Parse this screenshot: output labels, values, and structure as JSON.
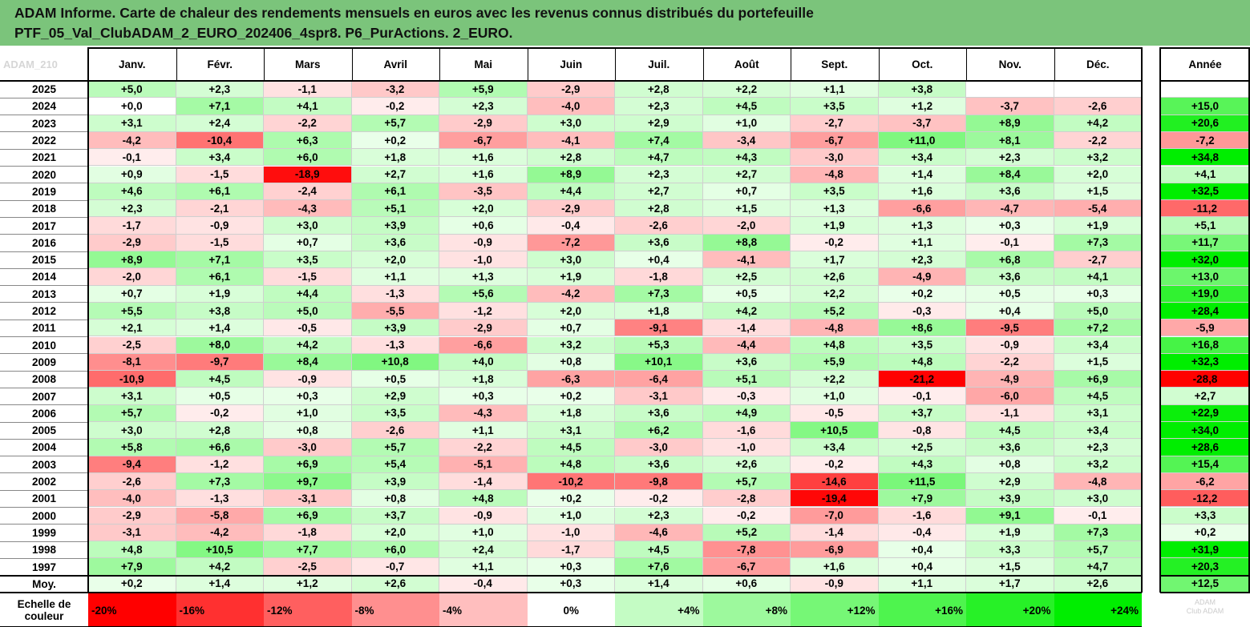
{
  "title": {
    "line1": "ADAM Informe. Carte de chaleur des rendements mensuels en euros avec les revenus connus distribués du portefeuille",
    "line2": "PTF_05_Val_ClubADAM_2_EURO_202406_4spr8. P6_PurActions. 2_EURO."
  },
  "corner_label": "ADAM_210",
  "watermark": "ADAM\nClub ADAM",
  "chart_data": {
    "type": "heatmap",
    "columns": [
      "Janv.",
      "Févr.",
      "Mars",
      "Avril",
      "Mai",
      "Juin",
      "Juil.",
      "Août",
      "Sept.",
      "Oct.",
      "Nov.",
      "Déc."
    ],
    "year_column": "Année",
    "rows": [
      {
        "label": "2025",
        "values": [
          5.0,
          2.3,
          -1.1,
          -3.2,
          5.9,
          -2.9,
          2.8,
          2.2,
          1.1,
          3.8,
          null,
          null
        ],
        "year": null
      },
      {
        "label": "2024",
        "values": [
          0.0,
          7.1,
          4.1,
          -0.2,
          2.3,
          -4.0,
          2.3,
          4.5,
          3.5,
          1.2,
          -3.7,
          -2.6
        ],
        "year": 15.0
      },
      {
        "label": "2023",
        "values": [
          3.1,
          2.4,
          -2.2,
          5.7,
          -2.9,
          3.0,
          2.9,
          1.0,
          -2.7,
          -3.7,
          8.9,
          4.2
        ],
        "year": 20.6
      },
      {
        "label": "2022",
        "values": [
          -4.2,
          -10.4,
          6.3,
          0.2,
          -6.7,
          -4.1,
          7.4,
          -3.4,
          -6.7,
          11.0,
          8.1,
          -2.2
        ],
        "year": -7.2
      },
      {
        "label": "2021",
        "values": [
          -0.1,
          3.4,
          6.0,
          1.8,
          1.6,
          2.8,
          4.7,
          4.3,
          -3.0,
          3.4,
          2.3,
          3.2
        ],
        "year": 34.8
      },
      {
        "label": "2020",
        "values": [
          0.9,
          -1.5,
          -18.9,
          2.7,
          1.6,
          8.9,
          2.3,
          2.7,
          -4.8,
          1.4,
          8.4,
          2.0
        ],
        "year": 4.1
      },
      {
        "label": "2019",
        "values": [
          4.6,
          6.1,
          -2.4,
          6.1,
          -3.5,
          4.4,
          2.7,
          0.7,
          3.5,
          1.6,
          3.6,
          1.5
        ],
        "year": 32.5
      },
      {
        "label": "2018",
        "values": [
          2.3,
          -2.1,
          -4.3,
          5.1,
          2.0,
          -2.9,
          2.8,
          1.5,
          1.3,
          -6.6,
          -4.7,
          -5.4
        ],
        "year": -11.2
      },
      {
        "label": "2017",
        "values": [
          -1.7,
          -0.9,
          3.0,
          3.9,
          0.6,
          -0.4,
          -2.6,
          -2.0,
          1.9,
          1.3,
          0.3,
          1.9
        ],
        "year": 5.1
      },
      {
        "label": "2016",
        "values": [
          -2.9,
          -1.5,
          0.7,
          3.6,
          -0.9,
          -7.2,
          3.6,
          8.8,
          -0.2,
          1.1,
          -0.1,
          7.3
        ],
        "year": 11.7
      },
      {
        "label": "2015",
        "values": [
          8.9,
          7.1,
          3.5,
          2.0,
          -1.0,
          3.0,
          0.4,
          -4.1,
          1.7,
          2.3,
          6.8,
          -2.7
        ],
        "year": 32.0
      },
      {
        "label": "2014",
        "values": [
          -2.0,
          6.1,
          -1.5,
          1.1,
          1.3,
          1.9,
          -1.8,
          2.5,
          2.6,
          -4.9,
          3.6,
          4.1
        ],
        "year": 13.0
      },
      {
        "label": "2013",
        "values": [
          0.7,
          1.9,
          4.4,
          -1.3,
          5.6,
          -4.2,
          7.3,
          0.5,
          2.2,
          0.2,
          0.5,
          0.3
        ],
        "year": 19.0
      },
      {
        "label": "2012",
        "values": [
          5.5,
          3.8,
          5.0,
          -5.5,
          -1.2,
          2.0,
          1.8,
          4.2,
          5.2,
          -0.3,
          0.4,
          5.0
        ],
        "year": 28.4
      },
      {
        "label": "2011",
        "values": [
          2.1,
          1.4,
          -0.5,
          3.9,
          -2.9,
          0.7,
          -9.1,
          -1.4,
          -4.8,
          8.6,
          -9.5,
          7.2
        ],
        "year": -5.9
      },
      {
        "label": "2010",
        "values": [
          -2.5,
          8.0,
          4.2,
          -1.3,
          -6.6,
          3.2,
          5.3,
          -4.4,
          4.8,
          3.5,
          -0.9,
          3.4
        ],
        "year": 16.8
      },
      {
        "label": "2009",
        "values": [
          -8.1,
          -9.7,
          8.4,
          10.8,
          4.0,
          0.8,
          10.1,
          3.6,
          5.9,
          4.8,
          -2.2,
          1.5
        ],
        "year": 32.3
      },
      {
        "label": "2008",
        "values": [
          -10.9,
          4.5,
          -0.9,
          0.5,
          1.8,
          -6.3,
          -6.4,
          5.1,
          2.2,
          -21.2,
          -4.9,
          6.9
        ],
        "year": -28.8
      },
      {
        "label": "2007",
        "values": [
          3.1,
          0.5,
          0.3,
          2.9,
          0.3,
          0.2,
          -3.1,
          -0.3,
          1.0,
          -0.1,
          -6.0,
          4.5
        ],
        "year": 2.7
      },
      {
        "label": "2006",
        "values": [
          5.7,
          -0.2,
          1.0,
          3.5,
          -4.3,
          1.8,
          3.6,
          4.9,
          -0.5,
          3.7,
          -1.1,
          3.1
        ],
        "year": 22.9
      },
      {
        "label": "2005",
        "values": [
          3.0,
          2.8,
          0.8,
          -2.6,
          1.1,
          3.1,
          6.2,
          -1.6,
          10.5,
          -0.8,
          4.5,
          3.4
        ],
        "year": 34.0
      },
      {
        "label": "2004",
        "values": [
          5.8,
          6.6,
          -3.0,
          5.7,
          -2.2,
          4.5,
          -3.0,
          -1.0,
          3.4,
          2.5,
          3.6,
          2.3
        ],
        "year": 28.6
      },
      {
        "label": "2003",
        "values": [
          -9.4,
          -1.2,
          6.9,
          5.4,
          -5.1,
          4.8,
          3.6,
          2.6,
          -0.2,
          4.3,
          0.8,
          3.2
        ],
        "year": 15.4
      },
      {
        "label": "2002",
        "values": [
          -2.6,
          7.3,
          9.7,
          3.9,
          -1.4,
          -10.2,
          -9.8,
          5.7,
          -14.6,
          11.5,
          2.9,
          -4.8
        ],
        "year": -6.2
      },
      {
        "label": "2001",
        "values": [
          -4.0,
          -1.3,
          -3.1,
          0.8,
          4.8,
          0.2,
          -0.2,
          -2.8,
          -19.4,
          7.9,
          3.9,
          3.0
        ],
        "year": -12.2
      },
      {
        "label": "2000",
        "values": [
          -2.9,
          -5.8,
          6.9,
          3.7,
          -0.9,
          1.0,
          2.3,
          -0.2,
          -7.0,
          -1.6,
          9.1,
          -0.1
        ],
        "year": 3.3
      },
      {
        "label": "1999",
        "values": [
          -3.1,
          -4.2,
          -1.8,
          2.0,
          1.0,
          -1.0,
          -4.6,
          5.2,
          -1.4,
          -0.4,
          1.9,
          7.3
        ],
        "year": 0.2
      },
      {
        "label": "1998",
        "values": [
          4.8,
          10.5,
          7.7,
          6.0,
          2.4,
          -1.7,
          4.5,
          -7.8,
          -6.9,
          0.4,
          3.3,
          5.7
        ],
        "year": 31.9
      },
      {
        "label": "1997",
        "values": [
          7.9,
          4.2,
          -2.5,
          -0.7,
          1.1,
          0.3,
          7.6,
          -6.7,
          1.6,
          0.4,
          1.5,
          4.7
        ],
        "year": 20.3
      }
    ],
    "average": {
      "label": "Moy.",
      "values": [
        0.2,
        1.4,
        1.2,
        2.6,
        -0.4,
        0.3,
        1.4,
        0.6,
        -0.9,
        1.1,
        1.7,
        2.6
      ],
      "year": 12.5
    },
    "scale": {
      "label_line1": "Echelle de",
      "label_line2": "couleur",
      "stops": [
        {
          "text": "-20%",
          "value": -20,
          "align": "left"
        },
        {
          "text": "-16%",
          "value": -16,
          "align": "left"
        },
        {
          "text": "-12%",
          "value": -12,
          "align": "left"
        },
        {
          "text": "-8%",
          "value": -8,
          "align": "left"
        },
        {
          "text": "-4%",
          "value": -4,
          "align": "left"
        },
        {
          "text": "0%",
          "value": 0,
          "align": "center"
        },
        {
          "text": "+4%",
          "value": 4,
          "align": "right"
        },
        {
          "text": "+8%",
          "value": 8,
          "align": "right"
        },
        {
          "text": "+12%",
          "value": 12,
          "align": "right"
        },
        {
          "text": "+16%",
          "value": 16,
          "align": "right"
        },
        {
          "text": "+20%",
          "value": 20,
          "align": "right"
        },
        {
          "text": "+24%",
          "value": 24,
          "align": "right"
        }
      ]
    },
    "colors": {
      "negative": "#ff0000",
      "neutral": "#ffffff",
      "positive": "#00ee00",
      "title_bar": "#7bc47b"
    }
  }
}
